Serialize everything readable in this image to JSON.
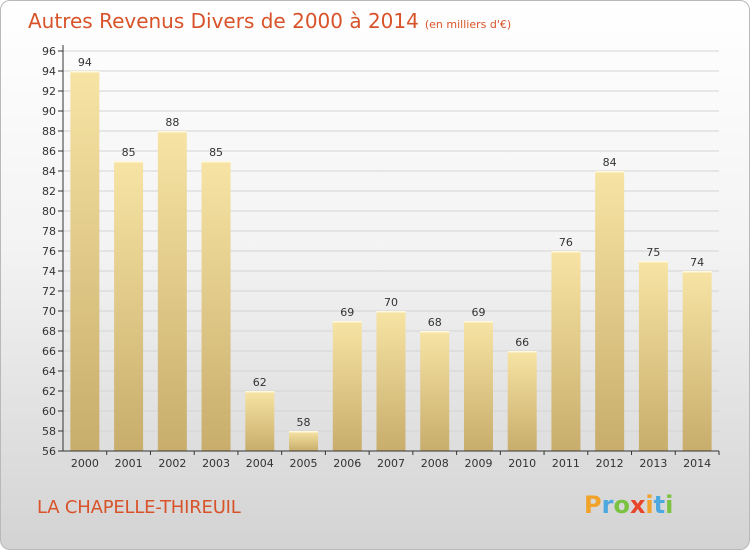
{
  "title": "Autres Revenus Divers de 2000 à 2014",
  "subtitle": "(en milliers d'€)",
  "commune": "LA CHAPELLE-THIREUIL",
  "brand": {
    "letters": [
      "P",
      "r",
      "o",
      "x",
      "i",
      "t",
      "i"
    ],
    "colors": [
      "#f0a22a",
      "#4ca8e0",
      "#7cc242",
      "#e8452a",
      "#f0a22a",
      "#4ca8e0",
      "#7cc242"
    ]
  },
  "colors": {
    "title": "#d8532a",
    "bar_light": "#f7e4a4",
    "bar_dark": "#c8ad6c",
    "grid": "#d4d4d4",
    "axis": "#333333",
    "text": "#333333"
  },
  "chart_data": {
    "type": "bar",
    "title": "Autres Revenus Divers de 2000 à 2014",
    "subtitle": "(en milliers d'€)",
    "categories": [
      "2000",
      "2001",
      "2002",
      "2003",
      "2004",
      "2005",
      "2006",
      "2007",
      "2008",
      "2009",
      "2010",
      "2011",
      "2012",
      "2013",
      "2014"
    ],
    "values": [
      94,
      85,
      88,
      85,
      62,
      58,
      69,
      70,
      68,
      69,
      66,
      76,
      84,
      75,
      74
    ],
    "ylim": [
      56,
      96
    ],
    "ytick_step": 2,
    "grid": true,
    "legend": "none"
  }
}
